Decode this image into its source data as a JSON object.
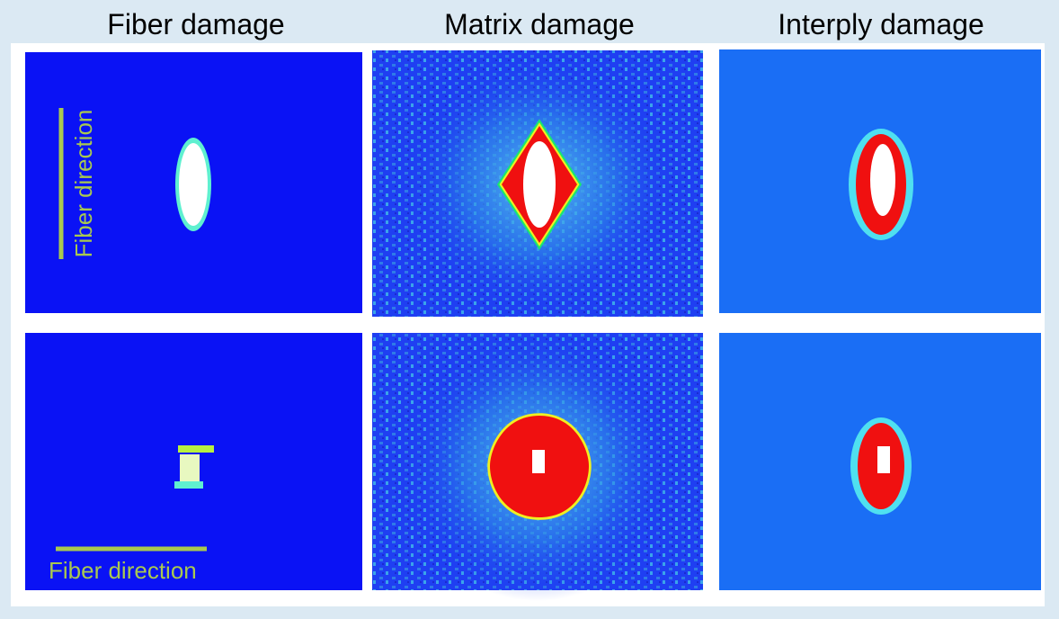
{
  "headers": [
    "Fiber damage",
    "Matrix damage",
    "Interply damage"
  ],
  "annotations": {
    "top_left": "Fiber direction",
    "bottom_left": "Fiber direction"
  }
}
